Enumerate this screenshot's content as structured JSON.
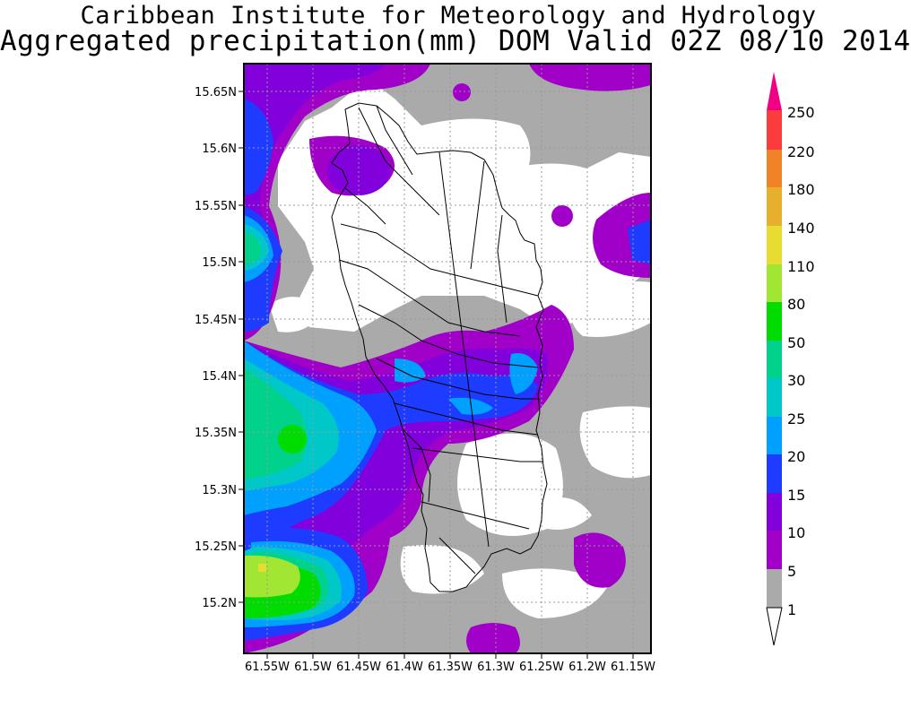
{
  "title": {
    "line1": "Caribbean Institute for Meteorology and Hydrology",
    "line2": "Aggregated precipitation(mm) DOM Valid 02Z 08/10 2014"
  },
  "colors": {
    "c1": "#aaaaaa",
    "c5": "#a000c8",
    "c10": "#8200dc",
    "c15": "#1e3cff",
    "c20": "#00a0ff",
    "c25": "#00c8c8",
    "c30": "#00d28c",
    "c50": "#00dc00",
    "c80": "#a0e632",
    "c110": "#e6dc32",
    "c140": "#e6af2d",
    "c180": "#f08228",
    "c220": "#fa3c3c",
    "c250": "#f00082",
    "land": "#ffffff",
    "frame": "#000000"
  },
  "axes": {
    "lon_ticks": [
      "61.55W",
      "61.5W",
      "61.45W",
      "61.4W",
      "61.35W",
      "61.3W",
      "61.25W",
      "61.2W",
      "61.15W"
    ],
    "lat_ticks": [
      "15.65N",
      "15.6N",
      "15.55N",
      "15.5N",
      "15.45N",
      "15.4N",
      "15.35N",
      "15.3N",
      "15.25N",
      "15.2N"
    ],
    "lon_range": [
      -61.57,
      -61.14
    ],
    "lat_range": [
      15.155,
      15.68
    ]
  },
  "colorbar": {
    "labels": [
      "1",
      "5",
      "10",
      "15",
      "20",
      "25",
      "30",
      "50",
      "80",
      "110",
      "140",
      "180",
      "220",
      "250"
    ]
  }
}
